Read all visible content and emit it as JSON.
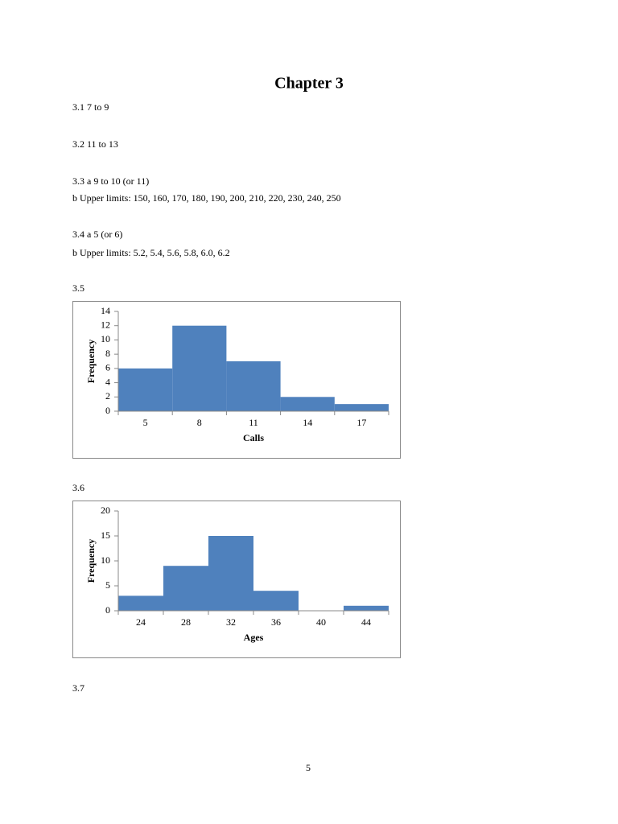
{
  "document": {
    "title": "Chapter 3",
    "lines": [
      "3.1 7 to 9",
      "3.2 11 to 13",
      "3.3 a 9 to 10 (or 11)",
      "b Upper limits: 150, 160, 170, 180, 190, 200, 210, 220, 230, 240, 250",
      "3.4 a 5 (or 6)",
      "b Upper limits: 5.2, 5.4, 5.6, 5.8, 6.0, 6.2",
      "3.5",
      "3.6",
      "3.7"
    ],
    "page_number": "5"
  },
  "chart_data": [
    {
      "type": "bar",
      "x_label": "Calls",
      "y_label": "Frequency",
      "color": "#4f81bd",
      "categories": [
        "5",
        "8",
        "11",
        "14",
        "17"
      ],
      "values": [
        6,
        12,
        7,
        2,
        1
      ],
      "ylim": [
        0,
        14
      ],
      "yticks": [
        0,
        2,
        4,
        6,
        8,
        10,
        12,
        14
      ]
    },
    {
      "type": "bar",
      "x_label": "Ages",
      "y_label": "Frequency",
      "color": "#4f81bd",
      "categories": [
        "24",
        "28",
        "32",
        "36",
        "40",
        "44"
      ],
      "values": [
        3,
        9,
        15,
        4,
        0,
        1
      ],
      "ylim": [
        0,
        20
      ],
      "yticks": [
        0,
        5,
        10,
        15,
        20
      ]
    }
  ]
}
